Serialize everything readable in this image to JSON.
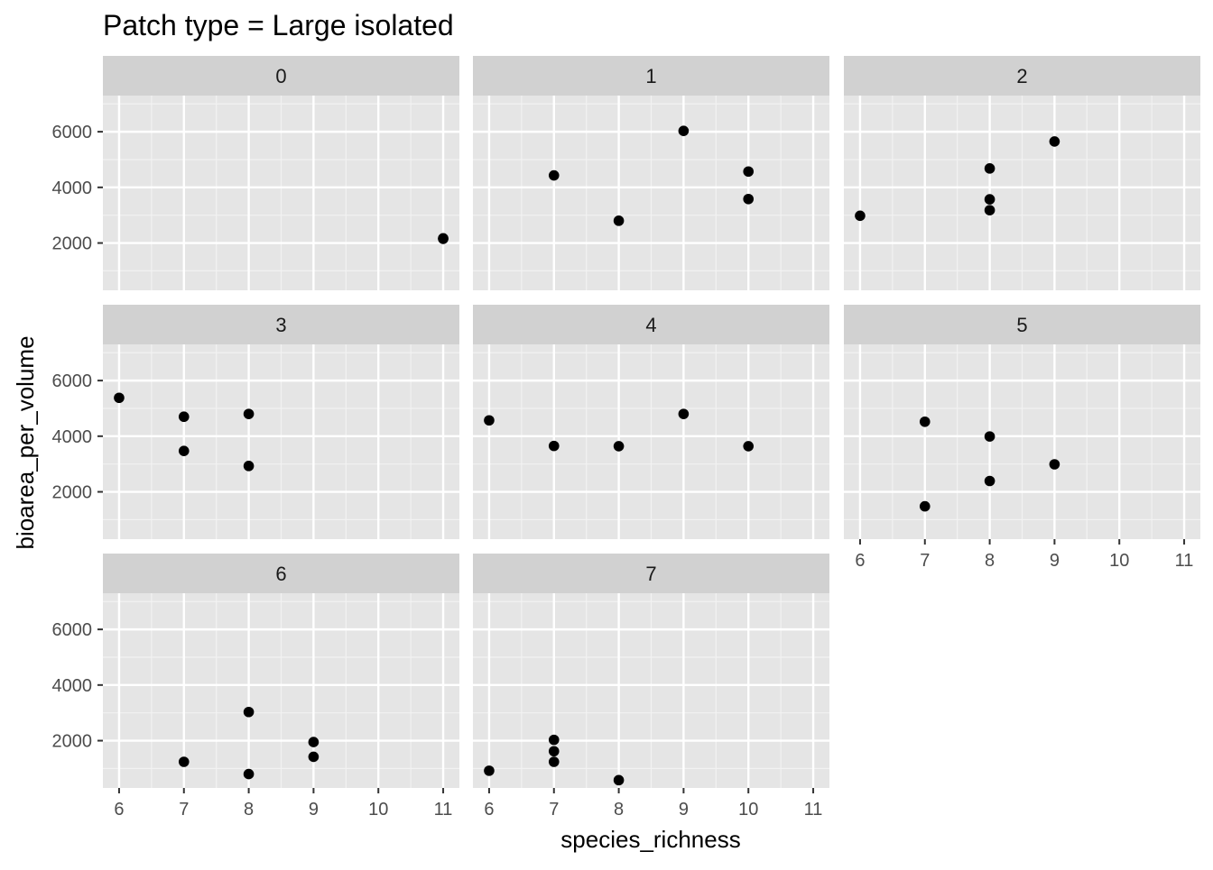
{
  "chart_data": {
    "type": "scatter",
    "title": "Patch type = Large isolated",
    "xlabel": "species_richness",
    "ylabel": "bioarea_per_volume",
    "xlim": [
      5.75,
      11.25
    ],
    "ylim": [
      300,
      7300
    ],
    "x_ticks": [
      6,
      7,
      8,
      9,
      10,
      11
    ],
    "y_ticks": [
      2000,
      4000,
      6000
    ],
    "grid": true,
    "point_color": "#000000",
    "panel_background": "#e5e5e5",
    "strip_background": "#d1d1d1",
    "panels": [
      {
        "label": "0",
        "points": [
          [
            11,
            2150
          ],
          [
            11,
            2170
          ]
        ]
      },
      {
        "label": "1",
        "points": [
          [
            7,
            4430
          ],
          [
            8,
            2800
          ],
          [
            9,
            6030
          ],
          [
            10,
            4570
          ],
          [
            10,
            3580
          ]
        ]
      },
      {
        "label": "2",
        "points": [
          [
            6,
            2980
          ],
          [
            8,
            4680
          ],
          [
            8,
            3570
          ],
          [
            8,
            3180
          ],
          [
            9,
            5650
          ]
        ]
      },
      {
        "label": "3",
        "points": [
          [
            6,
            5380
          ],
          [
            7,
            4700
          ],
          [
            7,
            3470
          ],
          [
            8,
            4800
          ],
          [
            8,
            2930
          ]
        ]
      },
      {
        "label": "4",
        "points": [
          [
            6,
            4570
          ],
          [
            7,
            3650
          ],
          [
            8,
            3640
          ],
          [
            9,
            4800
          ],
          [
            10,
            3640
          ]
        ]
      },
      {
        "label": "5",
        "points": [
          [
            7,
            4520
          ],
          [
            7,
            1480
          ],
          [
            8,
            3990
          ],
          [
            8,
            2390
          ],
          [
            9,
            2990
          ]
        ]
      },
      {
        "label": "6",
        "points": [
          [
            7,
            1240
          ],
          [
            8,
            3030
          ],
          [
            8,
            800
          ],
          [
            9,
            1950
          ],
          [
            9,
            1420
          ]
        ]
      },
      {
        "label": "7",
        "points": [
          [
            6,
            920
          ],
          [
            7,
            2030
          ],
          [
            7,
            1620
          ],
          [
            7,
            1240
          ],
          [
            8,
            580
          ]
        ]
      }
    ]
  }
}
